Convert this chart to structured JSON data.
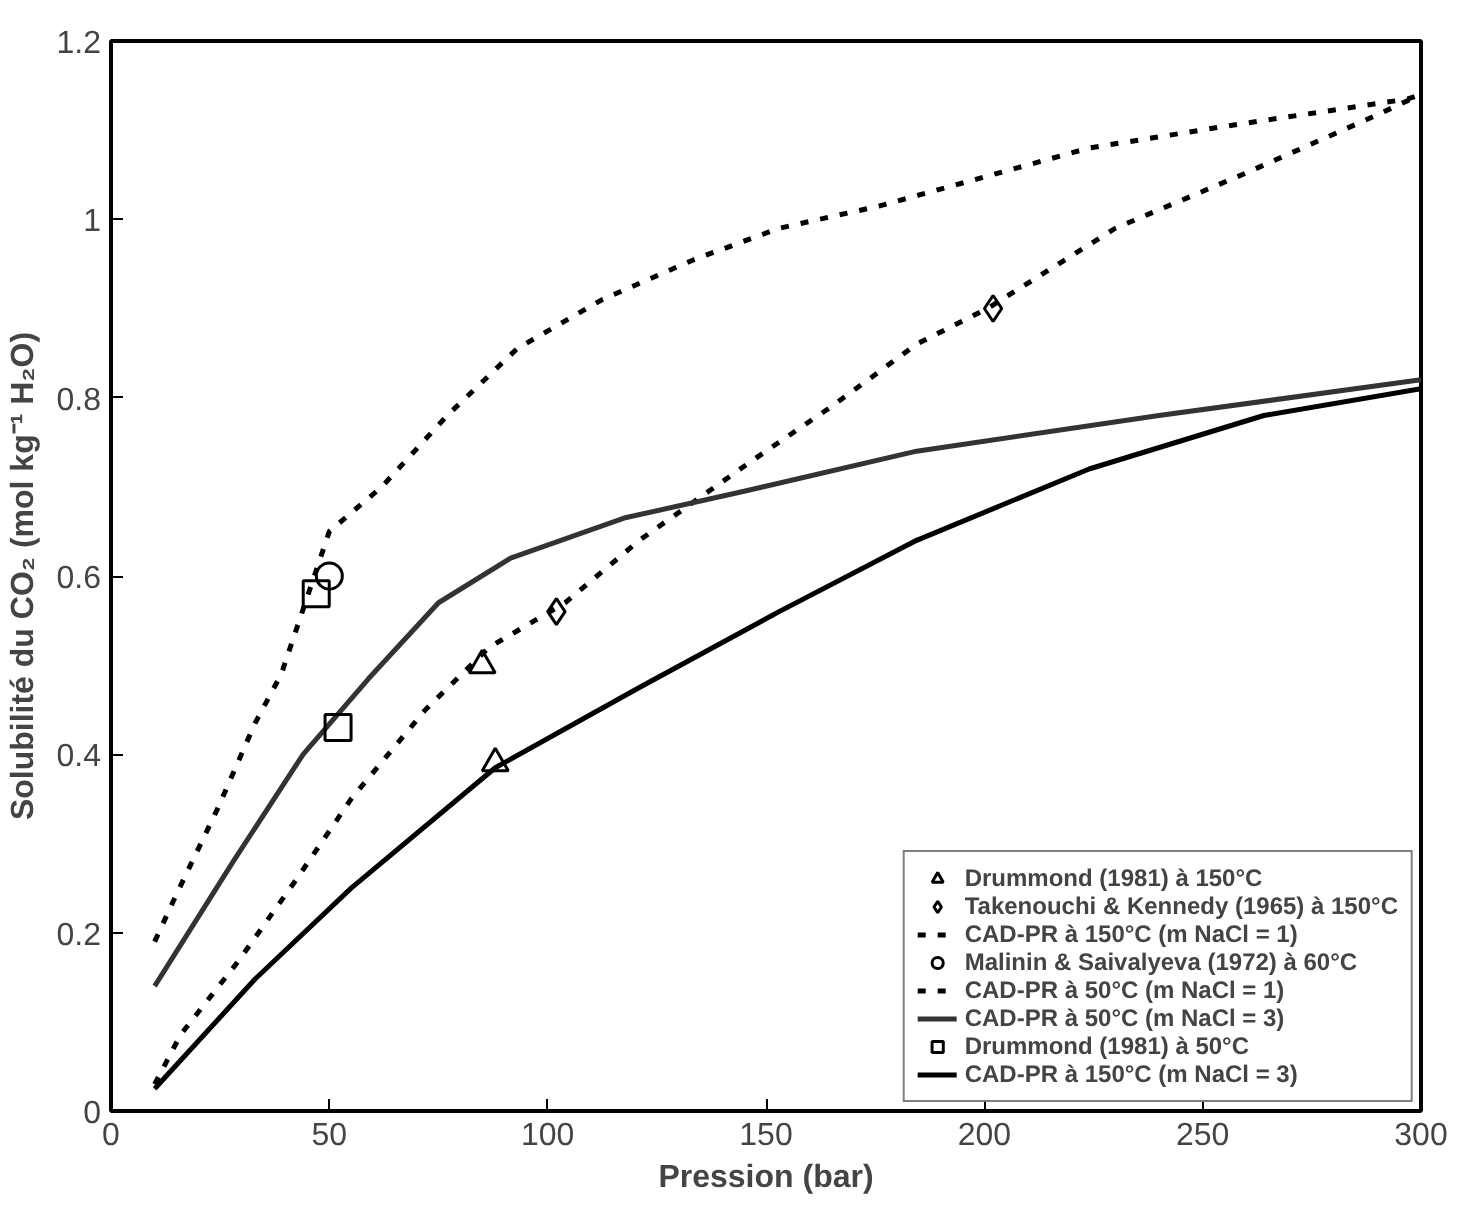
{
  "chart_data": {
    "type": "line",
    "xlabel": "Pression (bar)",
    "ylabel": "Solubilité du CO₂ (mol kg⁻¹ H₂O)",
    "xlim": [
      0,
      300
    ],
    "ylim": [
      0,
      1.2
    ],
    "xticks": [
      0,
      50,
      100,
      150,
      200,
      250,
      300
    ],
    "yticks": [
      0,
      0.2,
      0.4,
      0.6,
      0.8,
      {
        "value": 1,
        "label": "1"
      },
      1.2
    ],
    "grid": false,
    "legend": "bottom right",
    "series": [
      {
        "name": "Drummond (1981) à 150°C",
        "type": "scatter",
        "marker": "triangle",
        "color": "#000000",
        "x": [
          85,
          88
        ],
        "values": [
          0.5,
          0.39
        ]
      },
      {
        "name": "Takenouchi & Kennedy (1965) à 150°C",
        "type": "scatter",
        "marker": "diamond",
        "color": "#000000",
        "x": [
          102,
          202
        ],
        "values": [
          0.56,
          0.9
        ]
      },
      {
        "name": "CAD-PR à 150°C (m NaCl = 1)",
        "line_style": "dashed",
        "color": "#000000",
        "x": [
          10,
          16,
          29,
          42.5,
          55,
          72,
          86.6,
          104,
          121,
          147,
          165,
          184.5,
          200.7,
          230,
          259,
          289,
          300
        ],
        "values": [
          0.03,
          0.086,
          0.167,
          0.26,
          0.35,
          0.45,
          0.52,
          0.57,
          0.64,
          0.73,
          0.79,
          0.86,
          0.9,
          0.99,
          1.05,
          1.115,
          1.14
        ]
      },
      {
        "name": "Malinin & Saivalyeva (1972) à 60°C",
        "type": "scatter",
        "marker": "circle",
        "color": "#000000",
        "x": [
          50
        ],
        "values": [
          0.6
        ]
      },
      {
        "name": "CAD-PR à 50°C (m NaCl = 1)",
        "line_style": "dashed",
        "color": "#000000",
        "x": [
          10,
          14.7,
          24.5,
          33,
          39,
          50,
          62,
          77,
          93,
          112.5,
          133.6,
          153,
          176,
          224,
          256,
          297,
          300
        ],
        "values": [
          0.19,
          0.24,
          0.34,
          0.435,
          0.49,
          0.65,
          0.7,
          0.78,
          0.855,
          0.91,
          0.955,
          0.99,
          1.015,
          1.08,
          1.105,
          1.135,
          1.14
        ]
      },
      {
        "name": "CAD-PR à 50°C (m NaCl = 3)",
        "line_style": "solid",
        "color": "#333333",
        "x": [
          10,
          28,
          44,
          59,
          75,
          91.5,
          117.5,
          145,
          184.5,
          240,
          300
        ],
        "values": [
          0.14,
          0.28,
          0.4,
          0.485,
          0.57,
          0.62,
          0.665,
          0.695,
          0.74,
          0.78,
          0.82
        ]
      },
      {
        "name": "Drummond (1981) à 50°C",
        "type": "scatter",
        "marker": "square",
        "color": "#000000",
        "x": [
          47,
          52
        ],
        "values": [
          0.58,
          0.43
        ]
      },
      {
        "name": "CAD-PR à 150°C (m NaCl = 3)",
        "line_style": "solid",
        "color": "#000000",
        "x": [
          10,
          33,
          55,
          88,
          121,
          153,
          184.5,
          224,
          264,
          300
        ],
        "values": [
          0.025,
          0.148,
          0.25,
          0.385,
          0.475,
          0.56,
          0.64,
          0.72,
          0.78,
          0.81
        ]
      }
    ]
  }
}
